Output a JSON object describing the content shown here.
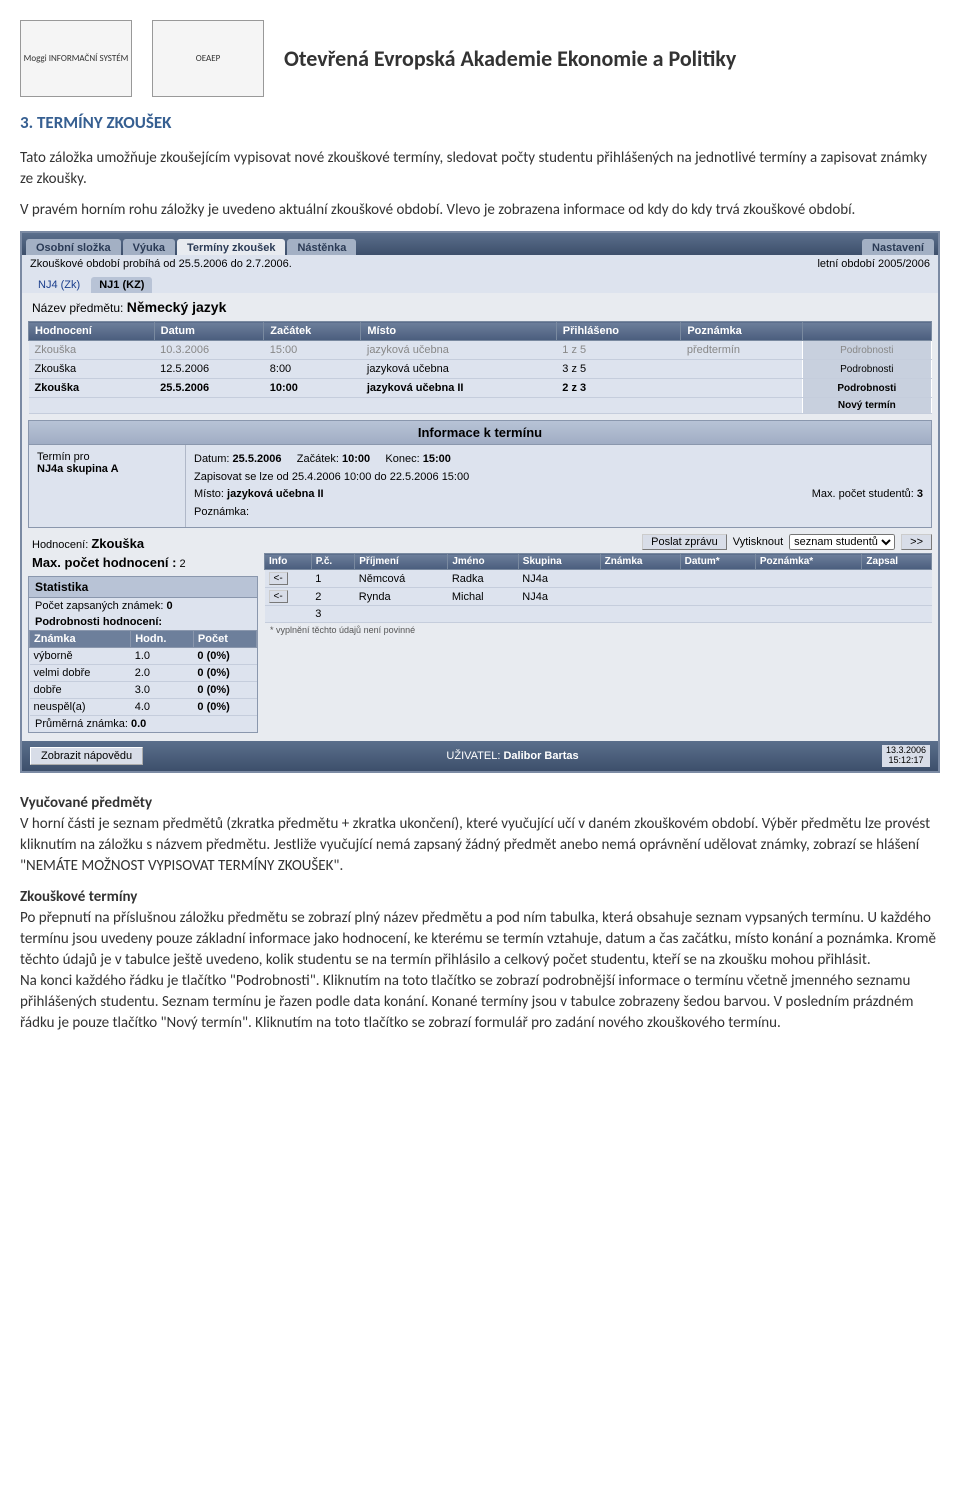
{
  "page": {
    "logo1": "Moggi INFORMAČNÍ SYSTÉM",
    "logo2": "OEAEP",
    "header_title": "Otevřená Evropská Akademie Ekonomie a Politiky",
    "section_num": "3. TERMÍNY ZKOUŠEK",
    "intro1": "Tato záložka umožňuje zkoušejícím vypisovat nové zkouškové termíny, sledovat počty studentu přihlášených na jednotlivé termíny a zapisovat známky ze zkoušky.",
    "intro2": "V pravém horním rohu záložky je uvedeno aktuální zkouškové období. Vlevo je zobrazena informace od kdy do kdy trvá zkouškové období.",
    "vyuc_head": "Vyučované předměty",
    "vyuc_body": "V horní části je seznam předmětů (zkratka předmětu + zkratka ukončení), které vyučující učí v daném zkouškovém období. Výběr předmětu lze provést kliknutím na záložku s názvem předmětu. Jestliže vyučující nemá zapsaný žádný předmět anebo nemá oprávnění udělovat známky, zobrazí se hlášení \"NEMÁTE MOŽNOST VYPISOVAT TERMÍNY ZKOUŠEK\".",
    "zkt_head": "Zkouškové termíny",
    "zkt_body1": "Po přepnutí na příslušnou záložku předmětu se zobrazí plný název předmětu a pod ním tabulka, která obsahuje seznam vypsaných termínu. U každého termínu jsou uvedeny pouze základní informace jako hodnocení, ke kterému se termín vztahuje, datum a čas začátku, místo konání a poznámka. Kromě těchto údajů je v tabulce ještě uvedeno, kolik studentu se na termín přihlásilo a celkový počet studentu, kteří se na zkoušku mohou přihlásit.",
    "zkt_body2": "Na konci každého řádku je tlačítko \"Podrobnosti\". Kliknutím na toto tlačítko se zobrazí podrobnější informace o termínu včetně jmenného seznamu přihlášených studentu. Seznam termínu je řazen podle data konání. Konané termíny jsou v tabulce zobrazeny šedou barvou. V posledním prázdném řádku je pouze tlačítko \"Nový termín\". Kliknutím na toto tlačítko se zobrazí formulář pro zadání nového zkouškového termínu."
  },
  "shot": {
    "tabs": [
      "Osobní složka",
      "Výuka",
      "Termíny zkoušek",
      "Nástěnka"
    ],
    "tab_right": "Nastavení",
    "period_left": "Zkouškové období probíhá od 25.5.2006 do 2.7.2006.",
    "period_right": "letní období 2005/2006",
    "subj_tabs": [
      {
        "label": "NJ4 (Zk)",
        "active": false
      },
      {
        "label": "NJ1 (KZ)",
        "active": true
      }
    ],
    "subj_label": "Název předmětu:",
    "subj_name": "Německý jazyk",
    "cols": [
      "Hodnocení",
      "Datum",
      "Začátek",
      "Místo",
      "Přihlášeno",
      "Poznámka",
      ""
    ],
    "rows": [
      {
        "h": "Zkouška",
        "d": "10.3.2006",
        "z": "15:00",
        "m": "jazyková učebna",
        "p": "1 z 5",
        "poz": "předtermín",
        "dim": true,
        "btn": "Podrobnosti"
      },
      {
        "h": "Zkouška",
        "d": "12.5.2006",
        "z": "8:00",
        "m": "jazyková učebna",
        "p": "3 z 5",
        "poz": "",
        "dim": false,
        "btn": "Podrobnosti"
      },
      {
        "h": "Zkouška",
        "d": "25.5.2006",
        "z": "10:00",
        "m": "jazyková učebna II",
        "p": "2 z 3",
        "poz": "",
        "dim": false,
        "bold": true,
        "btn": "Podrobnosti"
      }
    ],
    "new_term_btn": "Nový termín",
    "info_title": "Informace k termínu",
    "info_left_label": "Termín pro",
    "info_left_group": "NJ4a skupina A",
    "info_date_l": "Datum:",
    "info_date_v": "25.5.2006",
    "info_start_l": "Začátek:",
    "info_start_v": "10:00",
    "info_end_l": "Konec:",
    "info_end_v": "15:00",
    "info_range": "Zapisovat se lze od 25.4.2006 10:00 do 22.5.2006 15:00",
    "info_place_l": "Místo:",
    "info_place_v": "jazyková učebna II",
    "info_max_l": "Max. počet studentů:",
    "info_max_v": "3",
    "info_note_l": "Poznámka:",
    "hodn_l": "Hodnocení:",
    "hodn_v": "Zkouška",
    "maxh_l": "Max. počet hodnocení :",
    "maxh_v": "2",
    "stats_title": "Statistika",
    "stats_count_l": "Počet zapsaných známek:",
    "stats_count_v": "0",
    "stats_det": "Podrobnosti hodnocení:",
    "stats_cols": [
      "Známka",
      "Hodn.",
      "Počet"
    ],
    "stats_rows": [
      {
        "z": "výborně",
        "h": "1.0",
        "p": "0 (0%)"
      },
      {
        "z": "velmi dobře",
        "h": "2.0",
        "p": "0 (0%)"
      },
      {
        "z": "dobře",
        "h": "3.0",
        "p": "0 (0%)"
      },
      {
        "z": "neuspěl(a)",
        "h": "4.0",
        "p": "0 (0%)"
      }
    ],
    "stats_avg_l": "Průměrná známka:",
    "stats_avg_v": "0.0",
    "send_btn": "Poslat zprávu",
    "print_l": "Vytisknout",
    "print_opt": "seznam studentů",
    "go_btn": ">>",
    "stud_cols": [
      "Info",
      "P.č.",
      "Příjmení",
      "Jméno",
      "Skupina",
      "Známka",
      "Datum*",
      "Poznámka*",
      "Zapsal"
    ],
    "stud_rows": [
      {
        "n": "1",
        "pr": "Němcová",
        "jm": "Radka",
        "sk": "NJ4a"
      },
      {
        "n": "2",
        "pr": "Rynda",
        "jm": "Michal",
        "sk": "NJ4a"
      },
      {
        "n": "3",
        "pr": "",
        "jm": "",
        "sk": ""
      }
    ],
    "stud_note": "* vyplnění těchto údajů není povinné",
    "help_btn": "Zobrazit nápovědu",
    "user_l": "UŽIVATEL:",
    "user_v": "Dalibor Bartas",
    "ts1": "13.3.2006",
    "ts2": "15:12:17"
  }
}
